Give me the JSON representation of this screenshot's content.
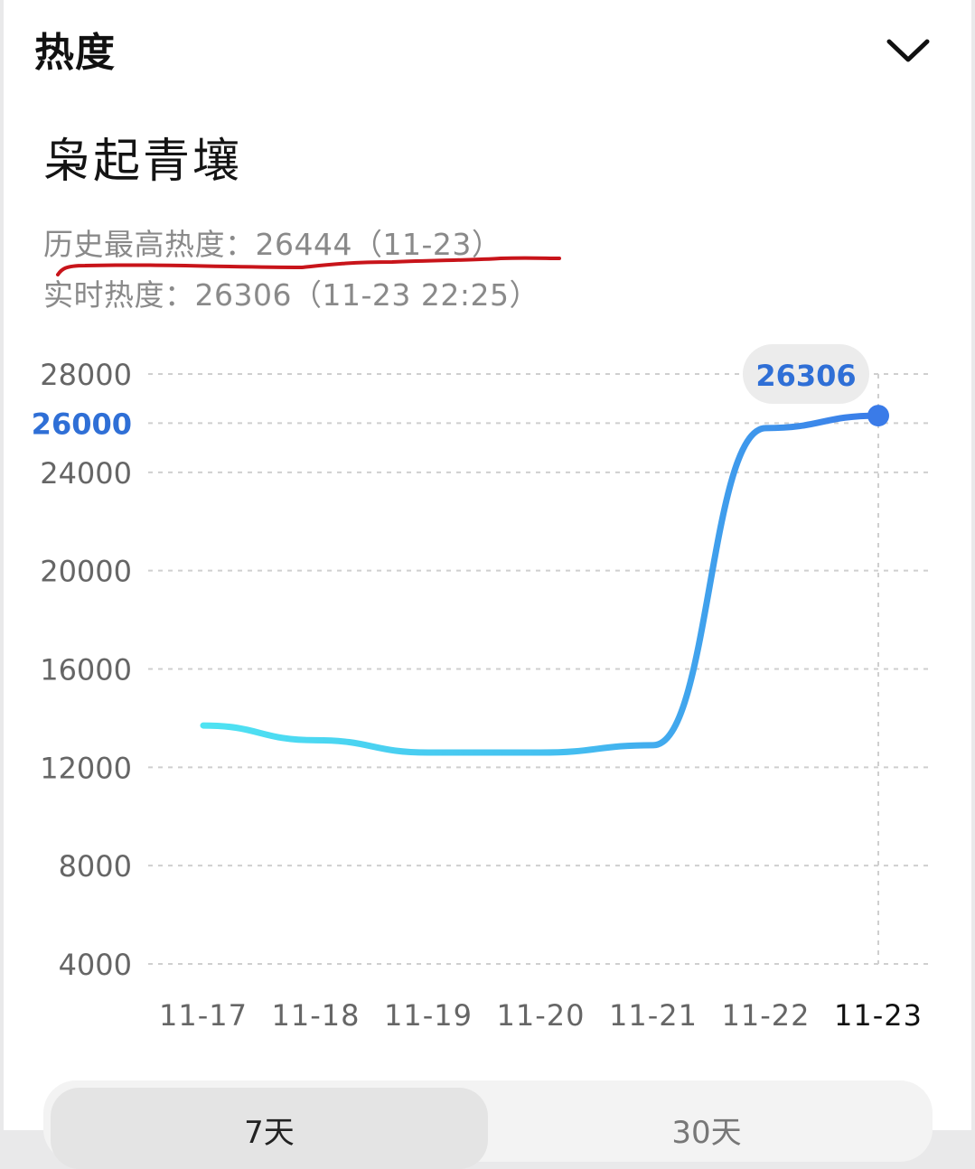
{
  "header": {
    "title": "热度"
  },
  "topic": {
    "title": "枭起青壤"
  },
  "stats": {
    "peak": "历史最高热度：26444（11-23）",
    "live": "实时热度：26306（11-23 22:25）"
  },
  "colors": {
    "line_start": "#4fe3f2",
    "line_end": "#3a7be8",
    "highlight": "#2f6fd6",
    "annotation": "#c8141a",
    "grid": "#cfcfcf"
  },
  "chart_data": {
    "type": "line",
    "x": [
      "11-17",
      "11-18",
      "11-19",
      "11-20",
      "11-21",
      "11-22",
      "11-23"
    ],
    "series": [
      {
        "values": [
          13700,
          13100,
          12600,
          12600,
          12900,
          25800,
          26306
        ]
      }
    ],
    "y_ticks": [
      "4000",
      "8000",
      "12000",
      "16000",
      "20000",
      "24000",
      "26000",
      "28000"
    ],
    "highlighted_tick": "26000",
    "ylim": [
      4000,
      28000
    ],
    "grid": true,
    "tooltip": {
      "x": "11-23",
      "value": "26306"
    }
  },
  "range_tabs": {
    "active": "7天",
    "inactive": "30天"
  }
}
